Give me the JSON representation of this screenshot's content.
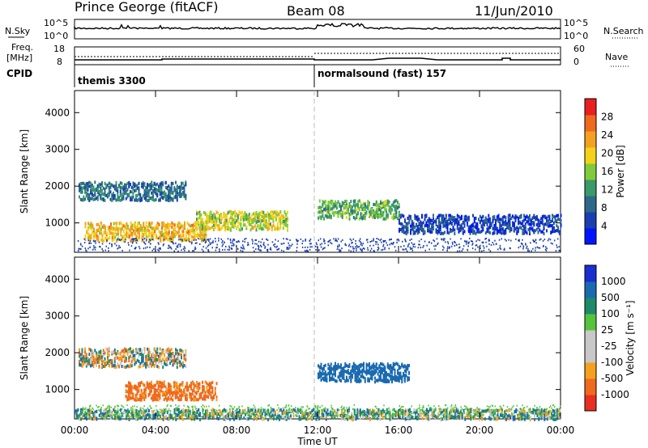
{
  "header": {
    "station": "Prince George (fitACF)",
    "beam": "Beam 08",
    "date": "11/Jun/2010"
  },
  "summary": {
    "nsky_label": "N.Sky",
    "nsky_ticks": [
      "10^5",
      "10^0"
    ],
    "nsearch_label": "N.Search",
    "freq_label_1": "Freq.",
    "freq_label_2": "[MHz]",
    "freq_ticks": [
      "18",
      "8"
    ],
    "nave_label": "Nave",
    "nave_ticks": [
      "60",
      "0"
    ],
    "cpid_label": "CPID",
    "cpid_segments": [
      "themis 3300",
      "normalsound (fast) 157"
    ]
  },
  "colors": {
    "power_scale": [
      "#0016ff",
      "#1a3fb0",
      "#2d6a8a",
      "#3a9a6a",
      "#7fcb3c",
      "#f4d21a",
      "#f4a020",
      "#f06a1e",
      "#e82020"
    ],
    "velocity_scale": [
      "#1a2fd0",
      "#1a6ab0",
      "#1d8a6a",
      "#55c43d",
      "#c8c8c8",
      "#c8c8c8",
      "#f4a020",
      "#f06a1e",
      "#e83020",
      "#ff0000"
    ]
  },
  "chart_data": [
    {
      "type": "heatmap",
      "name": "power",
      "ylabel": "Slant Range [km]",
      "xlabel": "Time UT",
      "x_ticks": [
        "00:00",
        "04:00",
        "08:00",
        "12:00",
        "16:00",
        "20:00",
        "00:00"
      ],
      "y_ticks": [
        1000,
        2000,
        3000,
        4000
      ],
      "ylim": [
        200,
        4600
      ],
      "colorbar": {
        "label": "Power [dB]",
        "ticks": [
          4,
          8,
          12,
          16,
          20,
          24,
          28
        ]
      },
      "bands": [
        {
          "t_start": 0.5,
          "t_end": 6.5,
          "range_km": 800,
          "value": 24
        },
        {
          "t_start": 0.2,
          "t_end": 5.5,
          "range_km": 1900,
          "value": 10
        },
        {
          "t_start": 6.0,
          "t_end": 10.5,
          "range_km": 1100,
          "value": 20
        },
        {
          "t_start": 12.0,
          "t_end": 16.0,
          "range_km": 1400,
          "value": 16
        },
        {
          "t_start": 16.0,
          "t_end": 24.0,
          "range_km": 1000,
          "value": 6
        }
      ]
    },
    {
      "type": "heatmap",
      "name": "velocity",
      "ylabel": "Slant Range [km]",
      "xlabel": "Time UT",
      "x_ticks": [
        "00:00",
        "04:00",
        "08:00",
        "12:00",
        "16:00",
        "20:00",
        "00:00"
      ],
      "y_ticks": [
        1000,
        2000,
        3000,
        4000
      ],
      "ylim": [
        200,
        4600
      ],
      "colorbar": {
        "label": "Velocity [m s⁻¹]",
        "ticks": [
          1000,
          500,
          100,
          25,
          -25,
          -100,
          -500,
          -1000
        ]
      },
      "bands": [
        {
          "t_start": 0.2,
          "t_end": 5.5,
          "range_km": 1900,
          "value": 0
        },
        {
          "t_start": 2.5,
          "t_end": 7.0,
          "range_km": 1000,
          "value": -200
        },
        {
          "t_start": 12.0,
          "t_end": 16.5,
          "range_km": 1500,
          "value": 300
        },
        {
          "t_start": 0.0,
          "t_end": 24.0,
          "range_km": 250,
          "value": 60
        }
      ]
    }
  ]
}
